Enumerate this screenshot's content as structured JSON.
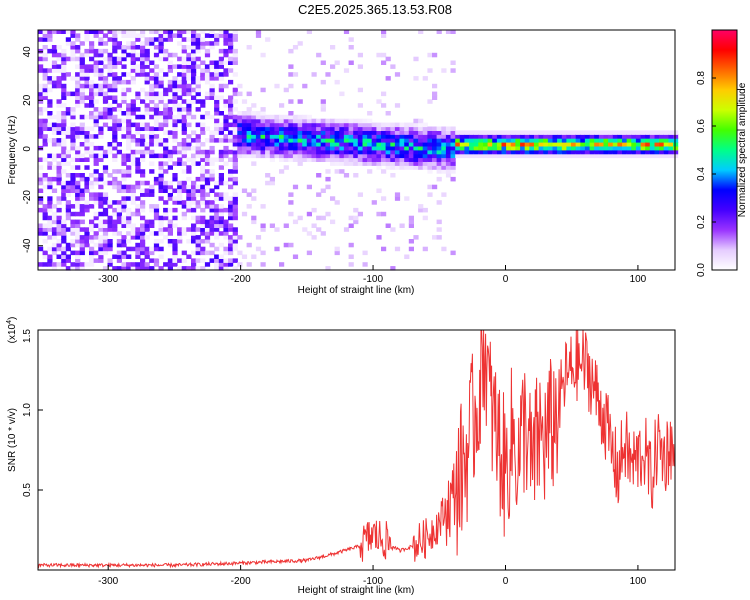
{
  "figure_title": "C2E5.2025.365.13.53.R08",
  "chart_data": [
    {
      "type": "heatmap",
      "xlabel": "Height of straight line (km)",
      "ylabel": "Frequency (Hz)",
      "xlim": [
        -353,
        128
      ],
      "ylim": [
        -50,
        49
      ],
      "x_ticks": [
        -300,
        -200,
        -100,
        0,
        100
      ],
      "y_ticks": [
        -40,
        -20,
        0,
        20,
        40
      ],
      "colorbar": {
        "label": "Normalized spectral amplitude",
        "range": [
          0,
          1
        ],
        "ticks": [
          0.0,
          0.2,
          0.4,
          0.6,
          0.8
        ],
        "tick_labels": [
          "0.0",
          "0.2",
          "0.4",
          "0.6",
          "0.8"
        ],
        "colors": [
          "#ffffff",
          "#e5ccff",
          "#9933ff",
          "#4400ff",
          "#0000ff",
          "#00ccff",
          "#00ff88",
          "#44ff00",
          "#ccff00",
          "#ffcc00",
          "#ff6600",
          "#ff0000",
          "#ff0066"
        ]
      },
      "regions": [
        {
          "x_range": [
            -353,
            -205
          ],
          "description": "broadband noise",
          "amplitude": 0.2
        },
        {
          "x_range": [
            -205,
            -40
          ],
          "center_hz": 2,
          "amplitude": 0.45
        },
        {
          "x_range": [
            -40,
            128
          ],
          "center_hz": 1,
          "amplitude": 0.85
        }
      ]
    },
    {
      "type": "line",
      "xlabel": "Height of straight line (km)",
      "ylabel": "SNR (10 * v/v)",
      "y_exponent_label": "(x10",
      "y_exponent_power": "4",
      "y_exponent_close": ")",
      "xlim": [
        -353,
        128
      ],
      "ylim": [
        0,
        1.5
      ],
      "x_ticks": [
        -300,
        -200,
        -100,
        0,
        100
      ],
      "y_ticks": [
        0.5,
        1.0,
        1.5
      ],
      "y_tick_labels": [
        "0.5",
        "1.0",
        "1.5"
      ],
      "series": [
        {
          "name": "SNR",
          "color": "#ee3333",
          "x": [
            -353,
            -300,
            -250,
            -210,
            -180,
            -150,
            -130,
            -110,
            -100,
            -90,
            -80,
            -70,
            -60,
            -50,
            -40,
            -30,
            -25,
            -20,
            -16,
            -12,
            -8,
            -4,
            0,
            5,
            10,
            15,
            20,
            25,
            30,
            35,
            40,
            45,
            50,
            55,
            60,
            65,
            70,
            75,
            80,
            85,
            90,
            95,
            100,
            105,
            110,
            115,
            120,
            125,
            128
          ],
          "values": [
            0.03,
            0.03,
            0.03,
            0.04,
            0.05,
            0.06,
            0.1,
            0.15,
            0.22,
            0.18,
            0.12,
            0.15,
            0.2,
            0.3,
            0.45,
            0.7,
            0.9,
            1.1,
            1.45,
            1.05,
            0.9,
            0.75,
            0.6,
            0.85,
            0.7,
            0.95,
            0.6,
            0.85,
            0.8,
            0.9,
            1.0,
            1.2,
            1.25,
            1.3,
            1.28,
            1.2,
            1.05,
            0.95,
            0.75,
            0.6,
            0.8,
            0.65,
            0.7,
            0.75,
            0.55,
            0.8,
            0.7,
            0.8,
            0.6
          ]
        }
      ]
    }
  ]
}
